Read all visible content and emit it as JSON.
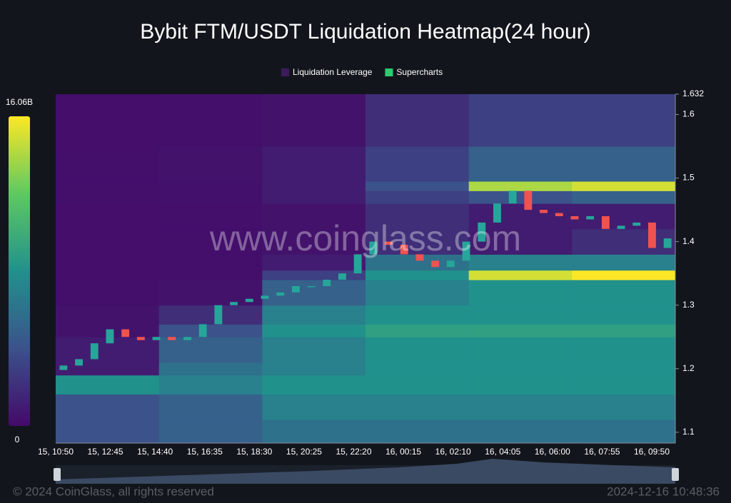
{
  "chart_data": {
    "type": "heatmap",
    "title": "Bybit FTM/USDT Liquidation Heatmap(24 hour)",
    "legend": [
      {
        "name": "Liquidation Leverage",
        "color": "#3d1a5e"
      },
      {
        "name": "Supercharts",
        "color": "#2ecc71"
      }
    ],
    "categories": [
      "15, 10:50",
      "15, 12:45",
      "15, 14:40",
      "15, 16:35",
      "15, 18:30",
      "15, 20:25",
      "15, 22:20",
      "16, 00:15",
      "16, 02:10",
      "16, 04:05",
      "16, 06:00",
      "16, 07:55",
      "16, 09:50"
    ],
    "ylim": [
      1.083,
      1.632
    ],
    "yticks": [
      1.1,
      1.2,
      1.3,
      1.4,
      1.5,
      1.6,
      1.632
    ],
    "colorlim": [
      0,
      16.06
    ],
    "colorticks": [
      0,
      {
        "value": 16.06,
        "label": "16.06B"
      }
    ],
    "heatmap": {
      "edges": [
        1.083,
        1.12,
        1.16,
        1.19,
        1.21,
        1.25,
        1.27,
        1.3,
        1.34,
        1.355,
        1.38,
        1.42,
        1.46,
        1.48,
        1.495,
        1.55,
        1.632
      ],
      "values": [
        [
          4,
          5,
          6,
          6,
          6,
          6
        ],
        [
          4,
          5,
          7,
          7,
          7,
          7
        ],
        [
          8,
          7,
          8,
          8,
          8,
          8
        ],
        [
          1,
          6,
          7,
          8,
          8,
          8
        ],
        [
          1,
          5,
          7,
          8,
          8,
          8
        ],
        [
          0.5,
          4,
          8,
          9,
          9,
          9
        ],
        [
          0.5,
          2,
          7,
          8,
          8,
          8
        ],
        [
          0.3,
          0.5,
          5,
          7,
          8,
          8
        ],
        [
          0.2,
          0.3,
          3,
          8,
          15,
          16
        ],
        [
          0.2,
          0.3,
          1,
          6,
          7,
          7
        ],
        [
          0.2,
          0.3,
          0.5,
          2,
          1,
          2
        ],
        [
          0.2,
          0.3,
          0.5,
          2,
          1,
          1
        ],
        [
          0.3,
          0.4,
          1,
          3,
          4,
          5
        ],
        [
          0.3,
          0.4,
          1,
          4,
          14,
          15
        ],
        [
          0.3,
          0.5,
          1,
          3,
          5,
          5
        ],
        [
          0.2,
          0.3,
          0.5,
          2,
          3,
          3
        ]
      ]
    },
    "candles": {
      "open": [
        1.198,
        1.205,
        1.215,
        1.24,
        1.262,
        1.25,
        1.245,
        1.25,
        1.245,
        1.25,
        1.27,
        1.3,
        1.305,
        1.31,
        1.315,
        1.32,
        1.33,
        1.33,
        1.34,
        1.35,
        1.38,
        1.4,
        1.395,
        1.38,
        1.37,
        1.36,
        1.37,
        1.4,
        1.43,
        1.46,
        1.48,
        1.45,
        1.445,
        1.44,
        1.435,
        1.44,
        1.42,
        1.425,
        1.43,
        1.39
      ],
      "close": [
        1.205,
        1.215,
        1.24,
        1.262,
        1.25,
        1.245,
        1.25,
        1.245,
        1.25,
        1.27,
        1.3,
        1.305,
        1.31,
        1.315,
        1.32,
        1.33,
        1.33,
        1.34,
        1.35,
        1.38,
        1.4,
        1.395,
        1.38,
        1.37,
        1.36,
        1.37,
        1.4,
        1.43,
        1.46,
        1.48,
        1.45,
        1.445,
        1.44,
        1.435,
        1.44,
        1.42,
        1.425,
        1.43,
        1.39,
        1.405
      ]
    },
    "watermark": "www.coinglass.com",
    "footer_left": "© 2024 CoinGlass, all rights reserved",
    "footer_right": "2024-12-16 10:48:36"
  }
}
